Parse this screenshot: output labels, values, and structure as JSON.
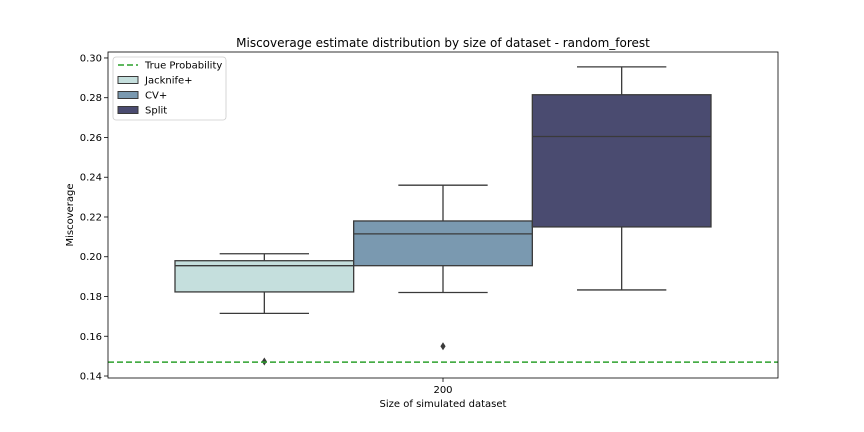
{
  "chart_data": {
    "type": "box",
    "title": "Miscoverage estimate distribution by size of dataset - random_forest",
    "xlabel": "Size of simulated dataset",
    "ylabel": "Miscoverage",
    "categories": [
      "200"
    ],
    "ylim": [
      0.139,
      0.303
    ],
    "yticks": [
      0.14,
      0.16,
      0.18,
      0.2,
      0.22,
      0.24,
      0.26,
      0.28,
      0.3
    ],
    "ytick_labels": [
      "0.14",
      "0.16",
      "0.18",
      "0.20",
      "0.22",
      "0.24",
      "0.26",
      "0.28",
      "0.30"
    ],
    "reference_line": {
      "name": "True Probability",
      "value": 0.147,
      "color": "#2ca02c",
      "style": "dashed"
    },
    "legend_position": "upper-left",
    "grid": false,
    "series": [
      {
        "name": "Jacknife+",
        "color": "#c5dfdd",
        "whisker_low": 0.1715,
        "q1": 0.1823,
        "median": 0.1955,
        "q3": 0.198,
        "whisker_high": 0.2015,
        "outliers": [
          0.1473
        ]
      },
      {
        "name": "CV+",
        "color": "#7a99b0",
        "whisker_low": 0.182,
        "q1": 0.1955,
        "median": 0.2115,
        "q3": 0.218,
        "whisker_high": 0.236,
        "outliers": [
          0.155
        ]
      },
      {
        "name": "Split",
        "color": "#4a4b70",
        "whisker_low": 0.1833,
        "q1": 0.215,
        "median": 0.2605,
        "q3": 0.2815,
        "whisker_high": 0.2955,
        "outliers": []
      }
    ]
  }
}
